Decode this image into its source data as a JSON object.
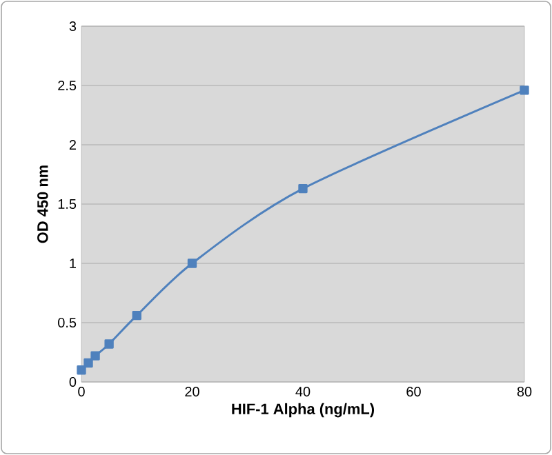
{
  "chart_data": {
    "type": "line",
    "xlabel": "HIF-1 Alpha (ng/mL)",
    "ylabel": "OD 450 nm",
    "x": [
      0,
      1.25,
      2.5,
      5,
      10,
      20,
      40,
      80
    ],
    "series": [
      {
        "color": "#4f81bd",
        "values": [
          0.1,
          0.16,
          0.22,
          0.32,
          0.56,
          1.0,
          1.63,
          2.46
        ]
      }
    ],
    "xlim": [
      0,
      80
    ],
    "xticks": [
      0,
      20,
      40,
      60,
      80
    ],
    "ylim": [
      0,
      3
    ],
    "yticks": [
      0,
      0.5,
      1,
      1.5,
      2,
      2.5,
      3
    ],
    "grid": "y",
    "marker": "square",
    "line_style": "solid"
  }
}
